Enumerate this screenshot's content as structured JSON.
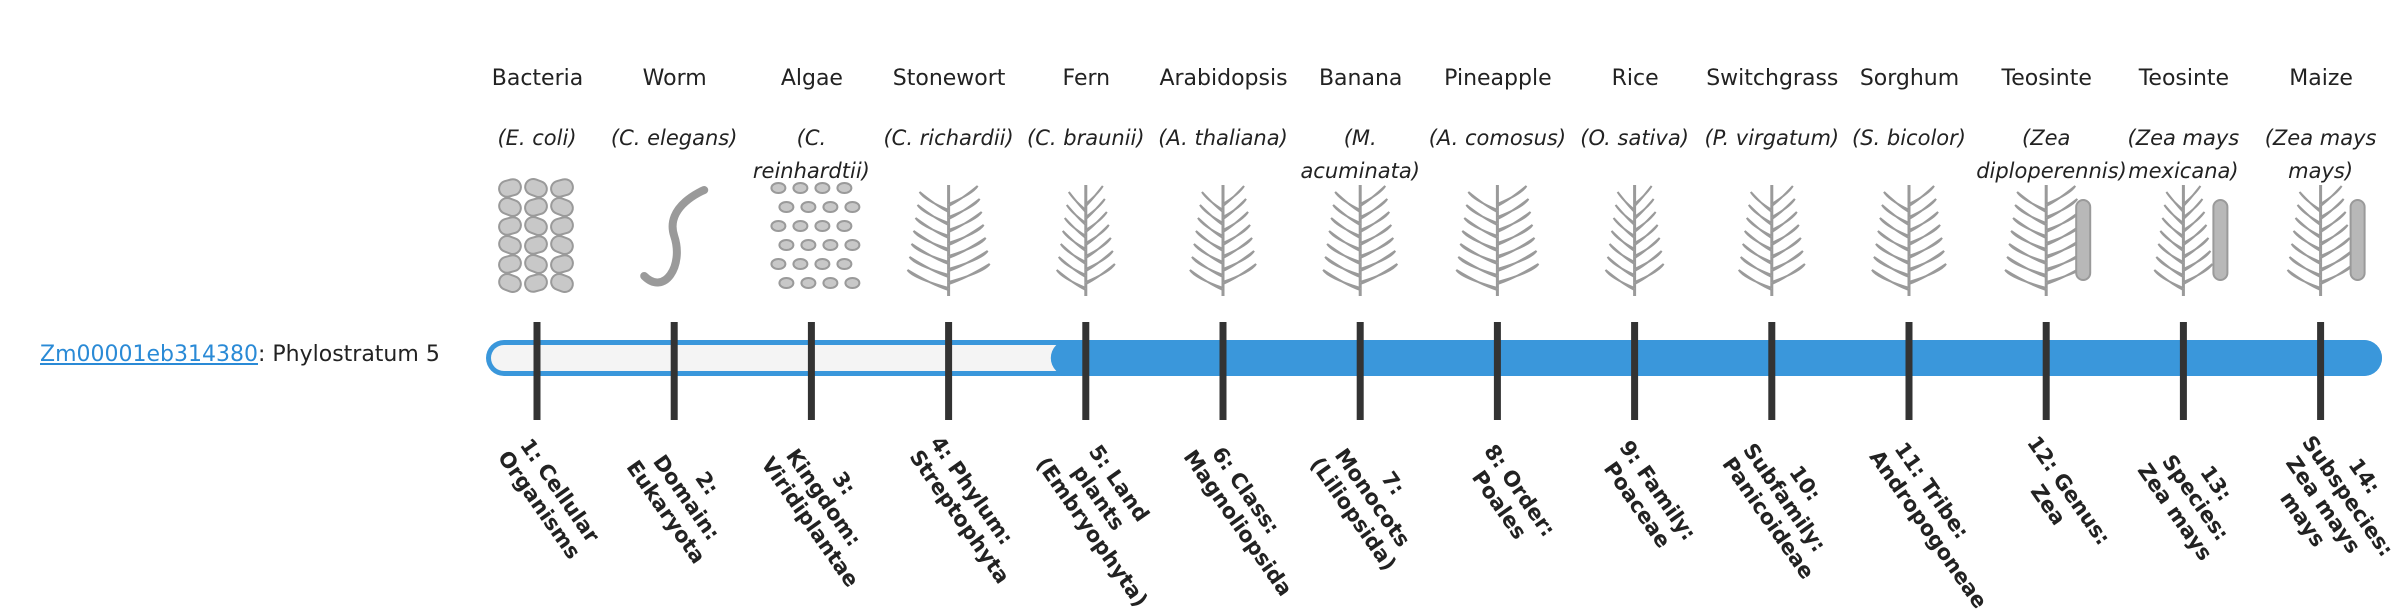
{
  "gene": {
    "id": "Zm00001eb314380",
    "label": ": Phylostratum",
    "phylostratum": 5
  },
  "organisms": [
    {
      "name": "Bacteria",
      "species": "(E. coli)"
    },
    {
      "name": "Worm",
      "species": "(C. elegans)"
    },
    {
      "name": "Algae",
      "species": "(C. reinhardtii)"
    },
    {
      "name": "Stonewort",
      "species": "(C. richardii)"
    },
    {
      "name": "Fern",
      "species": "(C. braunii)"
    },
    {
      "name": "Arabidopsis",
      "species": "(A. thaliana)"
    },
    {
      "name": "Banana",
      "species": "(M. acuminata)"
    },
    {
      "name": "Pineapple",
      "species": "(A. comosus)"
    },
    {
      "name": "Rice",
      "species": "(O. sativa)"
    },
    {
      "name": "Switchgrass",
      "species": "(P. virgatum)"
    },
    {
      "name": "Sorghum",
      "species": "(S. bicolor)"
    },
    {
      "name": "Teosinte",
      "species": "(Zea diploperennis)"
    },
    {
      "name": "Teosinte",
      "species": "(Zea mays mexicana)"
    },
    {
      "name": "Maize",
      "species": "(Zea mays mays)"
    }
  ],
  "strata": [
    "1: Cellular Organisms",
    "2: Domain: Eukaryota",
    "3: Kingdom: Viridiplantae",
    "4: Phylum: Streptophyta",
    "5: Land plants (Embryophyta)",
    "6: Class: Magnoliopsida",
    "7: Monocots (Liliopsida)",
    "8: Order: Poales",
    "9: Family: Poaceae",
    "10: Subfamily: Panicoideae",
    "11: Tribe: Andropogoneae",
    "12: Genus: Zea",
    "13: Species: Zea mays",
    "14: Subspecies: Zea mays mays"
  ]
}
